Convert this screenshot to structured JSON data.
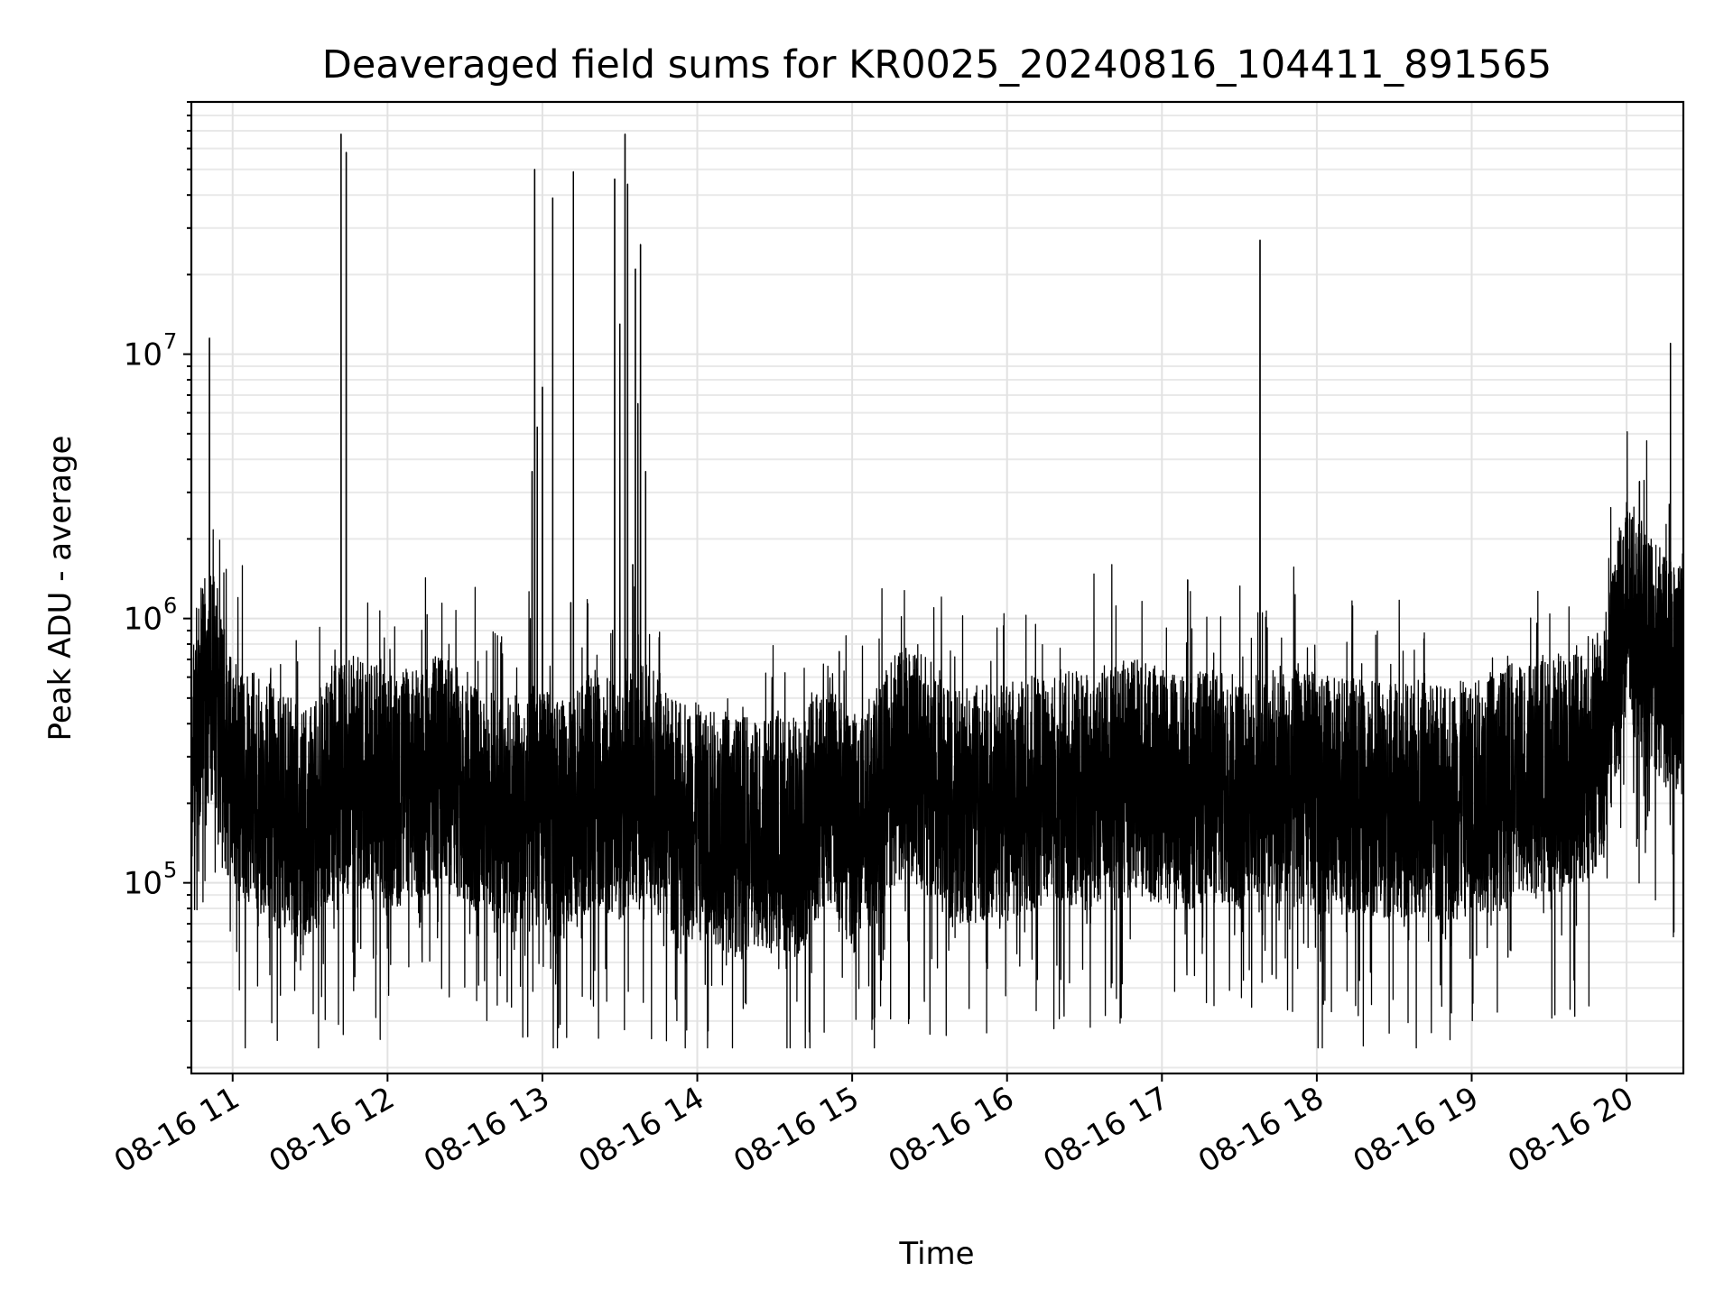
{
  "chart_data": {
    "type": "line",
    "title": "Deaveraged field sums for KR0025_20240816_104411_891565",
    "xlabel": "Time",
    "ylabel": "Peak ADU - average",
    "x_axis": {
      "type": "datetime",
      "range": [
        "2024-08-16 10:44",
        "2024-08-16 20:22"
      ],
      "ticks": [
        "08-16 11",
        "08-16 12",
        "08-16 13",
        "08-16 14",
        "08-16 15",
        "08-16 16",
        "08-16 17",
        "08-16 18",
        "08-16 19",
        "08-16 20"
      ],
      "tick_label_rotation_deg": 30
    },
    "y_axis": {
      "scale": "log",
      "range": [
        19000,
        90000000
      ],
      "major_ticks": [
        {
          "base": "10",
          "exponent": "5",
          "value": 100000
        },
        {
          "base": "10",
          "exponent": "6",
          "value": 1000000
        },
        {
          "base": "10",
          "exponent": "7",
          "value": 10000000
        }
      ]
    },
    "grid": {
      "major": true,
      "minor_y": true
    },
    "line_color": "#000000",
    "series": [
      {
        "x": [
          "10:44",
          "10:47",
          "10:50",
          "10:53",
          "10:56",
          "10:59",
          "11:02",
          "11:10",
          "11:20",
          "11:30",
          "11:40",
          "11:50",
          "12:00",
          "12:10",
          "12:20",
          "12:30",
          "12:40",
          "12:50",
          "13:00",
          "13:10",
          "13:20",
          "13:30",
          "13:40",
          "13:50",
          "14:00",
          "14:10",
          "14:20",
          "14:30",
          "14:40",
          "14:50",
          "15:00",
          "15:10",
          "15:20",
          "15:30",
          "15:40",
          "15:50",
          "16:00",
          "16:10",
          "16:20",
          "16:30",
          "16:40",
          "16:50",
          "17:00",
          "17:10",
          "17:20",
          "17:30",
          "17:40",
          "17:50",
          "18:00",
          "18:10",
          "18:20",
          "18:30",
          "18:40",
          "18:50",
          "19:00",
          "19:10",
          "19:20",
          "19:30",
          "19:40",
          "19:50",
          "20:00",
          "20:10",
          "20:20"
        ],
        "y": [
          300000,
          450000,
          550000,
          600000,
          350000,
          260000,
          230000,
          220000,
          180000,
          170000,
          250000,
          260000,
          220000,
          240000,
          260000,
          230000,
          200000,
          180000,
          190000,
          170000,
          230000,
          200000,
          250000,
          180000,
          170000,
          160000,
          150000,
          160000,
          150000,
          250000,
          150000,
          200000,
          300000,
          250000,
          190000,
          200000,
          200000,
          220000,
          230000,
          220000,
          240000,
          250000,
          230000,
          220000,
          230000,
          220000,
          240000,
          230000,
          220000,
          210000,
          210000,
          200000,
          210000,
          200000,
          210000,
          230000,
          250000,
          260000,
          280000,
          320000,
          1100000,
          700000,
          600000
        ]
      }
    ],
    "spikes": [
      {
        "x": "10:51",
        "y": 11500000
      },
      {
        "x": "11:42",
        "y": 68000000
      },
      {
        "x": "11:44",
        "y": 58000000
      },
      {
        "x": "12:56",
        "y": 3600000
      },
      {
        "x": "12:57",
        "y": 50000000
      },
      {
        "x": "12:58",
        "y": 5300000
      },
      {
        "x": "13:00",
        "y": 7500000
      },
      {
        "x": "13:04",
        "y": 39000000
      },
      {
        "x": "13:11",
        "y": 1150000
      },
      {
        "x": "13:12",
        "y": 49000000
      },
      {
        "x": "13:28",
        "y": 46000000
      },
      {
        "x": "13:30",
        "y": 13000000
      },
      {
        "x": "13:32",
        "y": 68000000
      },
      {
        "x": "13:33",
        "y": 44000000
      },
      {
        "x": "13:35",
        "y": 1600000
      },
      {
        "x": "13:36",
        "y": 21000000
      },
      {
        "x": "13:37",
        "y": 6500000
      },
      {
        "x": "13:38",
        "y": 26000000
      },
      {
        "x": "13:40",
        "y": 3600000
      },
      {
        "x": "14:55",
        "y": 750000
      },
      {
        "x": "17:10",
        "y": 1400000
      },
      {
        "x": "17:38",
        "y": 27000000
      },
      {
        "x": "20:05",
        "y": 3300000
      },
      {
        "x": "20:17",
        "y": 11000000
      }
    ]
  }
}
